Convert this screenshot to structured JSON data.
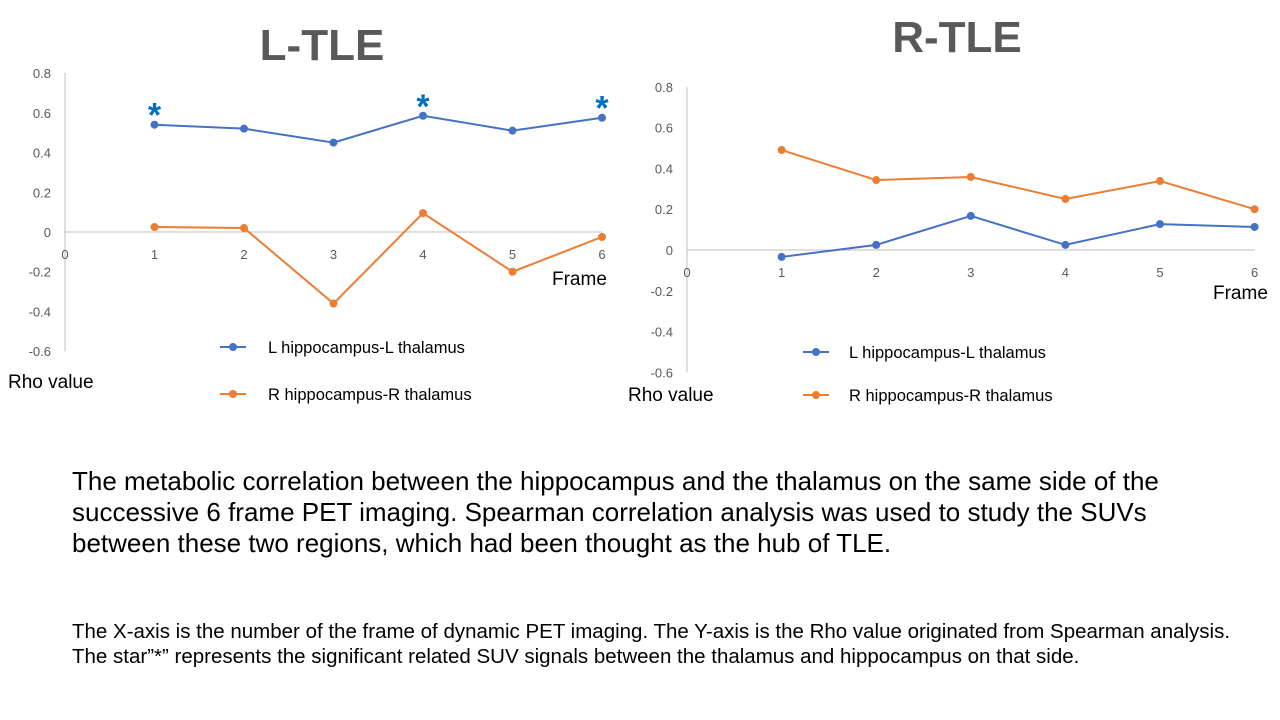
{
  "colors": {
    "blue": "#4472C4",
    "orange": "#ED7D31",
    "star": "#0070C0",
    "axis": "#BFBFBF",
    "tick": "#595959",
    "title": "#595959"
  },
  "chart_data": [
    {
      "type": "line",
      "title": "L-TLE",
      "xlabel": "Frame",
      "ylabel": "Rho value",
      "x_ticks": [
        "0",
        "1",
        "2",
        "3",
        "4",
        "5",
        "6"
      ],
      "y_ticks": [
        "0.8",
        "0.6",
        "0.4",
        "0.2",
        "0",
        "-0.2",
        "-0.4",
        "-0.6"
      ],
      "xlim": [
        0,
        6
      ],
      "ylim": [
        -0.6,
        0.8
      ],
      "x": [
        1,
        2,
        3,
        4,
        5,
        6
      ],
      "series": [
        {
          "name": "L hippocampus-L thalamus",
          "color": "#4472C4",
          "values": [
            0.54,
            0.52,
            0.45,
            0.585,
            0.51,
            0.575
          ]
        },
        {
          "name": "R hippocampus-R thalamus",
          "color": "#ED7D31",
          "values": [
            0.025,
            0.02,
            -0.36,
            0.095,
            -0.2,
            -0.025
          ]
        }
      ],
      "annotations": [
        {
          "text": "*",
          "x": 1,
          "series": 0
        },
        {
          "text": "*",
          "x": 4,
          "series": 0
        },
        {
          "text": "*",
          "x": 6,
          "series": 0
        }
      ],
      "legend": "bottom"
    },
    {
      "type": "line",
      "title": "R-TLE",
      "xlabel": "Frame",
      "ylabel": "Rho value",
      "x_ticks": [
        "0",
        "1",
        "2",
        "3",
        "4",
        "5",
        "6"
      ],
      "y_ticks": [
        "0.8",
        "0.6",
        "0.4",
        "0.2",
        "0",
        "-0.2",
        "-0.4",
        "-0.6"
      ],
      "xlim": [
        0,
        6
      ],
      "ylim": [
        -0.6,
        0.8
      ],
      "x": [
        1,
        2,
        3,
        4,
        5,
        6
      ],
      "series": [
        {
          "name": "L hippocampus-L thalamus",
          "color": "#4472C4",
          "values": [
            -0.034,
            0.025,
            0.167,
            0.025,
            0.127,
            0.113
          ]
        },
        {
          "name": "R hippocampus-R thalamus",
          "color": "#ED7D31",
          "values": [
            0.49,
            0.343,
            0.358,
            0.25,
            0.338,
            0.2
          ]
        }
      ],
      "annotations": [],
      "legend": "bottom"
    }
  ],
  "caption": {
    "main": "The metabolic correlation between the hippocampus and the thalamus on the same side of the successive 6 frame PET imaging. Spearman correlation analysis was used to study the SUVs between these two regions, which had been thought as the hub of TLE.",
    "note": "The X-axis is the number of the frame of dynamic PET imaging. The Y-axis is the Rho value originated from Spearman analysis. The star”*” represents the significant related SUV signals between the thalamus and hippocampus on that side."
  }
}
